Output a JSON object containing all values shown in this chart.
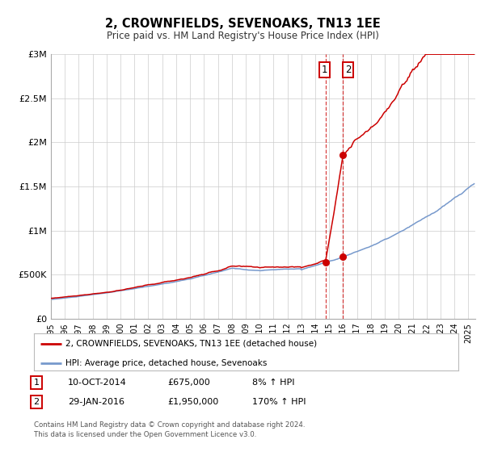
{
  "title": "2, CROWNFIELDS, SEVENOAKS, TN13 1EE",
  "subtitle": "Price paid vs. HM Land Registry's House Price Index (HPI)",
  "legend_line1": "2, CROWNFIELDS, SEVENOAKS, TN13 1EE (detached house)",
  "legend_line2": "HPI: Average price, detached house, Sevenoaks",
  "red_color": "#cc0000",
  "blue_color": "#7799cc",
  "annotation1": [
    "1",
    "10-OCT-2014",
    "£675,000",
    "8% ↑ HPI"
  ],
  "annotation2": [
    "2",
    "29-JAN-2016",
    "£1,950,000",
    "170% ↑ HPI"
  ],
  "footer1": "Contains HM Land Registry data © Crown copyright and database right 2024.",
  "footer2": "This data is licensed under the Open Government Licence v3.0.",
  "ylim": [
    0,
    3000000
  ],
  "yticks": [
    0,
    500000,
    1000000,
    1500000,
    2000000,
    2500000,
    3000000
  ],
  "ytick_labels": [
    "£0",
    "£500K",
    "£1M",
    "£1.5M",
    "£2M",
    "£2.5M",
    "£3M"
  ],
  "background_color": "#ffffff",
  "grid_color": "#cccccc"
}
